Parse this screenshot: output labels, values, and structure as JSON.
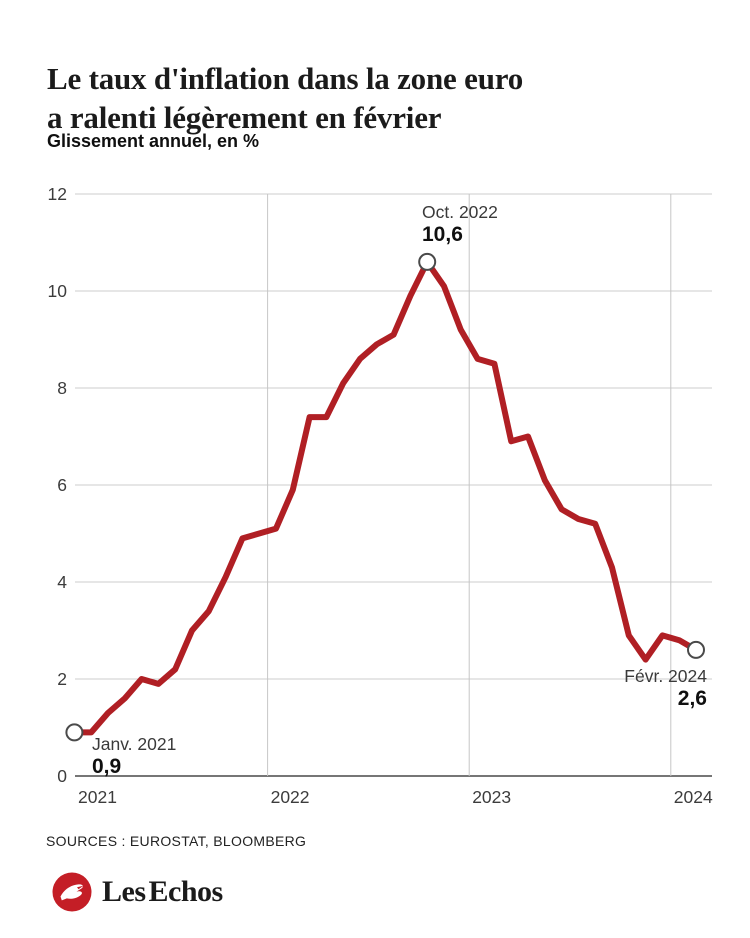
{
  "header": {
    "title_line1": "Le taux d'inflation dans la zone euro",
    "title_line2": "a ralenti légèrement en février",
    "subtitle": "Glissement annuel, en %"
  },
  "chart_data": {
    "type": "line",
    "title": "Le taux d'inflation dans la zone euro a ralenti légèrement en février",
    "subtitle": "Glissement annuel, en %",
    "unit": "%",
    "frequency": "monthly",
    "categories": [
      "2021-01",
      "2021-02",
      "2021-03",
      "2021-04",
      "2021-05",
      "2021-06",
      "2021-07",
      "2021-08",
      "2021-09",
      "2021-10",
      "2021-11",
      "2021-12",
      "2022-01",
      "2022-02",
      "2022-03",
      "2022-04",
      "2022-05",
      "2022-06",
      "2022-07",
      "2022-08",
      "2022-09",
      "2022-10",
      "2022-11",
      "2022-12",
      "2023-01",
      "2023-02",
      "2023-03",
      "2023-04",
      "2023-05",
      "2023-06",
      "2023-07",
      "2023-08",
      "2023-09",
      "2023-10",
      "2023-11",
      "2023-12",
      "2024-01",
      "2024-02"
    ],
    "values": [
      0.9,
      0.9,
      1.3,
      1.6,
      2.0,
      1.9,
      2.2,
      3.0,
      3.4,
      4.1,
      4.9,
      5.0,
      5.1,
      5.9,
      7.4,
      7.4,
      8.1,
      8.6,
      8.9,
      9.1,
      9.9,
      10.6,
      10.1,
      9.2,
      8.6,
      8.5,
      6.9,
      7.0,
      6.1,
      5.5,
      5.3,
      5.2,
      4.3,
      2.9,
      2.4,
      2.9,
      2.8,
      2.6
    ],
    "ylim": [
      0,
      12
    ],
    "yticks": [
      0,
      2,
      4,
      6,
      8,
      10,
      12
    ],
    "xticks": [
      "2021",
      "2022",
      "2023",
      "2024"
    ],
    "grid": true,
    "legend": false,
    "line_color": "#b01f24",
    "marked_points": [
      {
        "category": "2021-01",
        "label": "Janv. 2021",
        "value": 0.9,
        "value_label": "0,9"
      },
      {
        "category": "2022-10",
        "label": "Oct. 2022",
        "value": 10.6,
        "value_label": "10,6"
      },
      {
        "category": "2024-02",
        "label": "Févr. 2024",
        "value": 2.6,
        "value_label": "2,6"
      }
    ]
  },
  "footer": {
    "sources": "SOURCES : EUROSTAT, BLOOMBERG",
    "brand": "Les Echos"
  },
  "colors": {
    "line": "#b01f24",
    "grid": "#cccccc",
    "zero_axis": "#767676",
    "marker_stroke": "#4a4a4a",
    "brand_red": "#c41e26",
    "text": "#1b1b1b"
  }
}
